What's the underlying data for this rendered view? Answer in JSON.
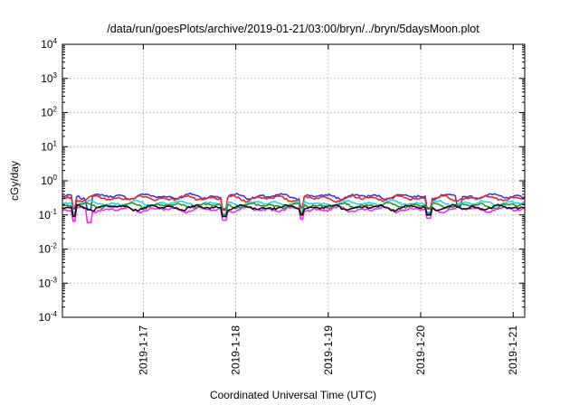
{
  "chart_data": {
    "type": "line",
    "title": "/data/run/goesPlots/archive/2019-01-21/03:00/bryn/../bryn/5daysMoon.plot",
    "xlabel": "Coordinated Universal Time (UTC)",
    "ylabel": "cGy/day",
    "y_scale": "log",
    "ylim": [
      0.0001,
      10000
    ],
    "y_ticks": [
      {
        "base": "10",
        "exp": "-4"
      },
      {
        "base": "10",
        "exp": "-3"
      },
      {
        "base": "10",
        "exp": "-2"
      },
      {
        "base": "10",
        "exp": "-1"
      },
      {
        "base": "10",
        "exp": "0"
      },
      {
        "base": "10",
        "exp": "1"
      },
      {
        "base": "10",
        "exp": "2"
      },
      {
        "base": "10",
        "exp": "3"
      },
      {
        "base": "10",
        "exp": "4"
      }
    ],
    "xlim": [
      "2019-01-16T03:00",
      "2019-01-21T03:00"
    ],
    "x_ticks": [
      "2019-1-17",
      "2019-1-18",
      "2019-1-19",
      "2019-1-20",
      "2019-1-21"
    ],
    "grid": true,
    "series": [
      {
        "color": "#3b3bd9",
        "level": 0.35,
        "dips": [
          [
            "2019-01-16T06:00",
            0.16
          ],
          [
            "2019-01-16T10:00",
            0.14
          ],
          [
            "2019-01-17T21:00",
            0.15
          ],
          [
            "2019-01-18T17:00",
            0.17
          ],
          [
            "2019-01-20T02:00",
            0.16
          ],
          [
            "2019-01-20T10:00",
            0.18
          ]
        ]
      },
      {
        "color": "#e8262c",
        "level": 0.31,
        "dips": [
          [
            "2019-01-16T06:00",
            0.15
          ],
          [
            "2019-01-17T21:00",
            0.14
          ],
          [
            "2019-01-18T17:00",
            0.16
          ],
          [
            "2019-01-20T02:00",
            0.15
          ]
        ]
      },
      {
        "color": "#27d3e6",
        "level": 0.22,
        "dips": [
          [
            "2019-01-16T06:00",
            0.12
          ],
          [
            "2019-01-17T21:00",
            0.11
          ],
          [
            "2019-01-18T17:00",
            0.12
          ],
          [
            "2019-01-20T02:00",
            0.12
          ]
        ]
      },
      {
        "color": "#2a9a2a",
        "level": 0.19,
        "dips": [
          [
            "2019-01-16T06:00",
            0.1
          ],
          [
            "2019-01-17T21:00",
            0.1
          ],
          [
            "2019-01-18T17:00",
            0.11
          ],
          [
            "2019-01-20T02:00",
            0.11
          ]
        ]
      },
      {
        "color": "#ff22ff",
        "level": 0.145,
        "dips": [
          [
            "2019-01-16T06:00",
            0.065
          ],
          [
            "2019-01-16T10:00",
            0.06
          ],
          [
            "2019-01-17T21:00",
            0.07
          ],
          [
            "2019-01-18T17:00",
            0.075
          ],
          [
            "2019-01-20T02:00",
            0.08
          ]
        ]
      },
      {
        "color": "#111111",
        "level": 0.165,
        "dips": [
          [
            "2019-01-16T06:00",
            0.09
          ],
          [
            "2019-01-17T21:00",
            0.09
          ],
          [
            "2019-01-18T17:00",
            0.1
          ],
          [
            "2019-01-20T02:00",
            0.1
          ]
        ]
      }
    ]
  }
}
